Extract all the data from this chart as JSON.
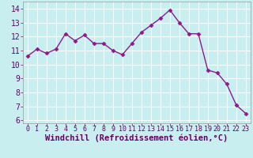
{
  "x": [
    0,
    1,
    2,
    3,
    4,
    5,
    6,
    7,
    8,
    9,
    10,
    11,
    12,
    13,
    14,
    15,
    16,
    17,
    18,
    19,
    20,
    21,
    22,
    23
  ],
  "y": [
    10.6,
    11.1,
    10.8,
    11.1,
    12.2,
    11.7,
    12.1,
    11.5,
    11.5,
    11.0,
    10.7,
    11.5,
    12.3,
    12.8,
    13.3,
    13.9,
    13.0,
    12.2,
    12.2,
    9.6,
    9.4,
    8.6,
    7.1,
    6.5
  ],
  "line_color": "#8b1a8b",
  "marker": "D",
  "marker_size": 2.5,
  "bg_color": "#c8eef0",
  "grid_color": "#ffffff",
  "xlabel": "Windchill (Refroidissement éolien,°C)",
  "ylim": [
    5.8,
    14.5
  ],
  "xlim": [
    -0.5,
    23.5
  ],
  "yticks": [
    6,
    7,
    8,
    9,
    10,
    11,
    12,
    13,
    14
  ],
  "xticks": [
    0,
    1,
    2,
    3,
    4,
    5,
    6,
    7,
    8,
    9,
    10,
    11,
    12,
    13,
    14,
    15,
    16,
    17,
    18,
    19,
    20,
    21,
    22,
    23
  ],
  "ytick_labelsize": 7,
  "xtick_labelsize": 6,
  "xlabel_fontsize": 7.5
}
